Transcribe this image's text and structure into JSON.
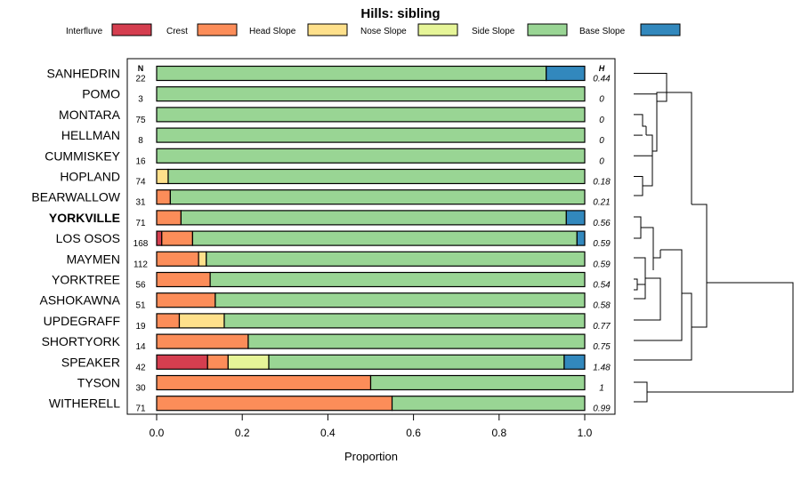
{
  "chart_data": {
    "type": "stacked-bar",
    "title": "Hills: sibling",
    "xlabel": "Proportion",
    "xlim": [
      0,
      1
    ],
    "xticks": [
      "0.0",
      "0.2",
      "0.4",
      "0.6",
      "0.8",
      "1.0"
    ],
    "n_header": "N",
    "h_header": "H",
    "legend_position": "top",
    "legend": [
      {
        "name": "Interfluve",
        "color": "#D53E4F"
      },
      {
        "name": "Crest",
        "color": "#FC8D59"
      },
      {
        "name": "Head Slope",
        "color": "#FEE08B"
      },
      {
        "name": "Nose Slope",
        "color": "#E6F598"
      },
      {
        "name": "Side Slope",
        "color": "#99D594"
      },
      {
        "name": "Base Slope",
        "color": "#3288BD"
      }
    ],
    "highlighted": "YORKVILLE",
    "series_rows": [
      {
        "label": "SANHEDRIN",
        "n": "22",
        "h": "0.44",
        "segments": [
          0,
          0,
          0,
          0,
          0.91,
          0.09
        ]
      },
      {
        "label": "POMO",
        "n": "3",
        "h": "0",
        "segments": [
          0,
          0,
          0,
          0,
          1.0,
          0
        ]
      },
      {
        "label": "MONTARA",
        "n": "75",
        "h": "0",
        "segments": [
          0,
          0,
          0,
          0,
          1.0,
          0
        ]
      },
      {
        "label": "HELLMAN",
        "n": "8",
        "h": "0",
        "segments": [
          0,
          0,
          0,
          0,
          1.0,
          0
        ]
      },
      {
        "label": "CUMMISKEY",
        "n": "16",
        "h": "0",
        "segments": [
          0,
          0,
          0,
          0,
          1.0,
          0
        ]
      },
      {
        "label": "HOPLAND",
        "n": "74",
        "h": "0.18",
        "segments": [
          0,
          0,
          0.027,
          0,
          0.973,
          0
        ]
      },
      {
        "label": "BEARWALLOW",
        "n": "31",
        "h": "0.21",
        "segments": [
          0,
          0.032,
          0,
          0,
          0.968,
          0
        ]
      },
      {
        "label": "YORKVILLE",
        "n": "71",
        "h": "0.56",
        "segments": [
          0,
          0.057,
          0,
          0,
          0.9,
          0.043
        ]
      },
      {
        "label": "LOS OSOS",
        "n": "168",
        "h": "0.59",
        "segments": [
          0.012,
          0.072,
          0,
          0,
          0.898,
          0.018
        ]
      },
      {
        "label": "MAYMEN",
        "n": "112",
        "h": "0.59",
        "segments": [
          0,
          0.098,
          0.018,
          0,
          0.884,
          0
        ]
      },
      {
        "label": "YORKTREE",
        "n": "56",
        "h": "0.54",
        "segments": [
          0,
          0.125,
          0,
          0,
          0.875,
          0
        ]
      },
      {
        "label": "ASHOKAWNA",
        "n": "51",
        "h": "0.58",
        "segments": [
          0,
          0.137,
          0,
          0,
          0.863,
          0
        ]
      },
      {
        "label": "UPDEGRAFF",
        "n": "19",
        "h": "0.77",
        "segments": [
          0,
          0.053,
          0.105,
          0,
          0.842,
          0
        ]
      },
      {
        "label": "SHORTYORK",
        "n": "14",
        "h": "0.75",
        "segments": [
          0,
          0.214,
          0,
          0,
          0.786,
          0
        ]
      },
      {
        "label": "SPEAKER",
        "n": "42",
        "h": "1.48",
        "segments": [
          0.119,
          0.048,
          0,
          0.095,
          0.69,
          0.048
        ]
      },
      {
        "label": "TYSON",
        "n": "30",
        "h": "1",
        "segments": [
          0,
          0.5,
          0,
          0,
          0.5,
          0
        ]
      },
      {
        "label": "WITHERELL",
        "n": "71",
        "h": "0.99",
        "segments": [
          0,
          0.55,
          0,
          0,
          0.45,
          0
        ]
      }
    ]
  }
}
